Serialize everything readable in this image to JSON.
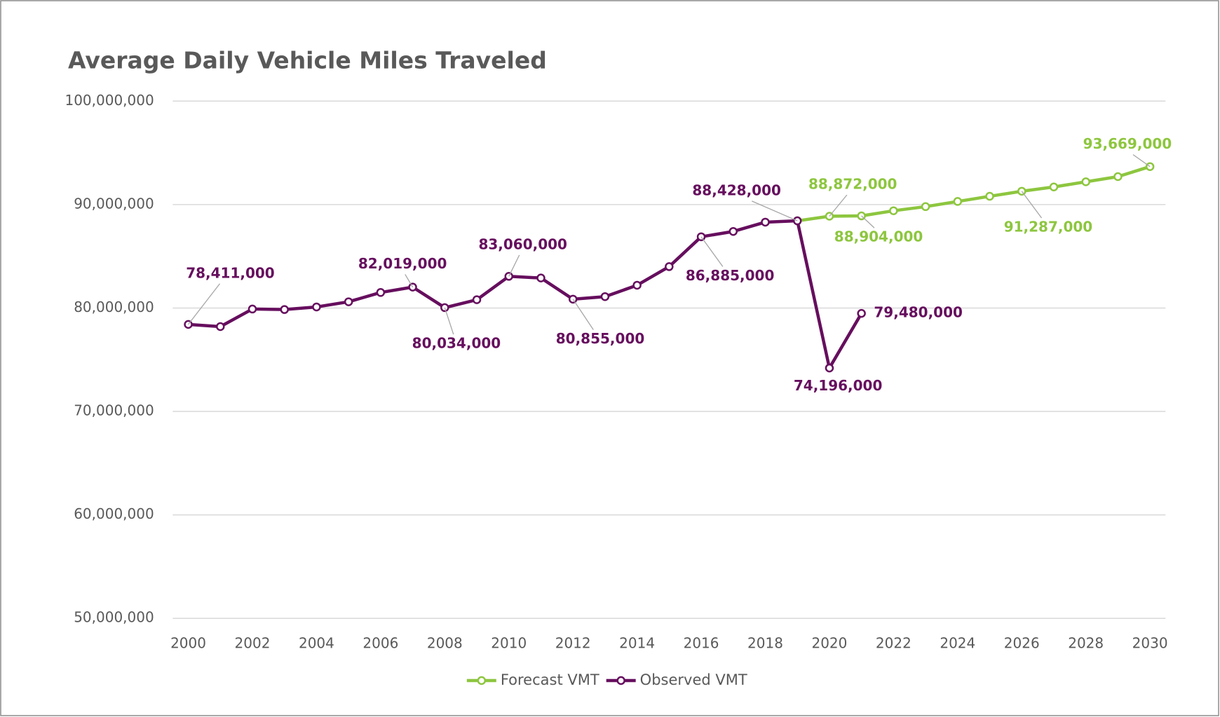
{
  "chart_data": {
    "type": "line",
    "title": "Average Daily Vehicle Miles Traveled",
    "x": [
      2000,
      2001,
      2002,
      2003,
      2004,
      2005,
      2006,
      2007,
      2008,
      2009,
      2010,
      2011,
      2012,
      2013,
      2014,
      2015,
      2016,
      2017,
      2018,
      2019,
      2020,
      2021,
      2022,
      2023,
      2024,
      2025,
      2026,
      2027,
      2028,
      2029,
      2030
    ],
    "series": [
      {
        "name": "Forecast VMT",
        "color": "#8dc63f",
        "values": [
          null,
          null,
          null,
          null,
          null,
          null,
          null,
          null,
          null,
          null,
          null,
          null,
          null,
          null,
          null,
          null,
          null,
          null,
          null,
          88428000,
          88872000,
          88904000,
          89400000,
          89800000,
          90300000,
          90800000,
          91287000,
          91700000,
          92200000,
          92700000,
          93669000
        ],
        "value_labels": [
          null,
          null,
          null,
          null,
          null,
          null,
          null,
          null,
          null,
          null,
          null,
          null,
          null,
          null,
          null,
          null,
          null,
          null,
          null,
          null,
          "88,872,000",
          "88,904,000",
          null,
          null,
          null,
          null,
          "91,287,000",
          null,
          null,
          null,
          "93,669,000"
        ]
      },
      {
        "name": "Observed VMT",
        "color": "#660e5e",
        "values": [
          78411000,
          78200000,
          79900000,
          79850000,
          80100000,
          80600000,
          81500000,
          82019000,
          80034000,
          80800000,
          83060000,
          82900000,
          80855000,
          81100000,
          82200000,
          84000000,
          86885000,
          87400000,
          88300000,
          88428000,
          74196000,
          79480000,
          null,
          null,
          null,
          null,
          null,
          null,
          null,
          null,
          null
        ],
        "value_labels": [
          "78,411,000",
          null,
          null,
          null,
          null,
          null,
          null,
          "82,019,000",
          "80,034,000",
          null,
          "83,060,000",
          null,
          "80,855,000",
          null,
          null,
          null,
          "86,885,000",
          null,
          null,
          "88,428,000",
          "74,196,000",
          "79,480,000",
          null,
          null,
          null,
          null,
          null,
          null,
          null,
          null,
          null
        ]
      }
    ],
    "xlim": [
      2000,
      2030
    ],
    "xticks": [
      2000,
      2002,
      2004,
      2006,
      2008,
      2010,
      2012,
      2014,
      2016,
      2018,
      2020,
      2022,
      2024,
      2026,
      2028,
      2030
    ],
    "ylim": [
      50000000,
      100000000
    ],
    "yticks": [
      {
        "value": 50000000,
        "label": "50,000,000"
      },
      {
        "value": 60000000,
        "label": "60,000,000"
      },
      {
        "value": 70000000,
        "label": "70,000,000"
      },
      {
        "value": 80000000,
        "label": "80,000,000"
      },
      {
        "value": 90000000,
        "label": "90,000,000"
      },
      {
        "value": 100000000,
        "label": "100,000,000"
      }
    ],
    "grid": true,
    "legend": "bottom"
  }
}
